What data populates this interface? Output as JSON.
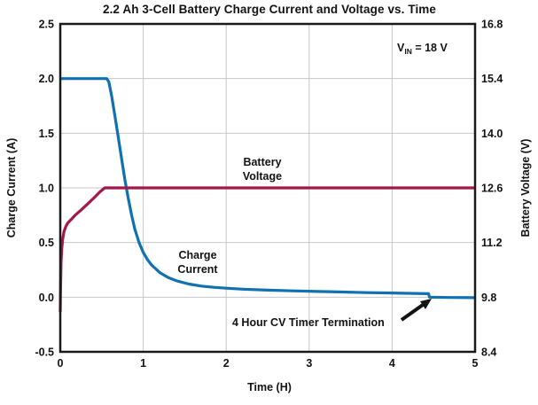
{
  "chart_data": {
    "type": "line",
    "title": "2.2 Ah 3-Cell Battery Charge Current and Voltage vs. Time",
    "xlabel": "Time (H)",
    "ylabel_left": "Charge Current (A)",
    "ylabel_right": "Battery Voltage (V)",
    "xlim": [
      0,
      5
    ],
    "ylim_left": [
      -0.5,
      2.5
    ],
    "ylim_right": [
      8.4,
      16.8
    ],
    "grid": "on",
    "x_ticks": [
      "0",
      "1",
      "2",
      "3",
      "4",
      "5"
    ],
    "y_left_ticks": [
      "2.5",
      "2.0",
      "1.5",
      "1.0",
      "0.5",
      "0.0",
      "-0.5"
    ],
    "y_right_ticks": [
      "16.8",
      "15.4",
      "14.0",
      "12.6",
      "11.2",
      "9.8",
      "8.4"
    ],
    "annotations": {
      "vin": {
        "pre": "V",
        "sub": "IN",
        "post": " = 18 V"
      },
      "battery_voltage_label": {
        "line1": "Battery",
        "line2": "Voltage"
      },
      "charge_current_label": {
        "line1": "Charge",
        "line2": "Current"
      },
      "cv_timer": "4 Hour CV Timer Termination"
    },
    "series": [
      {
        "name": "Charge Current",
        "axis": "left",
        "unit": "A",
        "color": "#0f70b2",
        "points": [
          [
            0,
            2.0
          ],
          [
            0.56,
            2.0
          ],
          [
            0.585,
            1.97
          ],
          [
            0.62,
            1.84
          ],
          [
            0.66,
            1.65
          ],
          [
            0.7,
            1.46
          ],
          [
            0.74,
            1.26
          ],
          [
            0.78,
            1.07
          ],
          [
            0.82,
            0.9
          ],
          [
            0.86,
            0.75
          ],
          [
            0.9,
            0.62
          ],
          [
            0.95,
            0.5
          ],
          [
            1.0,
            0.41
          ],
          [
            1.05,
            0.345
          ],
          [
            1.1,
            0.295
          ],
          [
            1.2,
            0.225
          ],
          [
            1.3,
            0.18
          ],
          [
            1.4,
            0.15
          ],
          [
            1.55,
            0.12
          ],
          [
            1.7,
            0.102
          ],
          [
            1.85,
            0.09
          ],
          [
            2.0,
            0.082
          ],
          [
            2.2,
            0.073
          ],
          [
            2.5,
            0.064
          ],
          [
            2.8,
            0.058
          ],
          [
            3.1,
            0.052
          ],
          [
            3.4,
            0.047
          ],
          [
            3.7,
            0.042
          ],
          [
            4.0,
            0.038
          ],
          [
            4.2,
            0.035
          ],
          [
            4.44,
            0.032
          ],
          [
            4.45,
            0.0
          ],
          [
            4.7,
            -0.003
          ],
          [
            5.0,
            -0.005
          ]
        ]
      },
      {
        "name": "Battery Voltage",
        "axis": "right",
        "unit": "V",
        "color": "#a21848",
        "points": [
          [
            0,
            9.42
          ],
          [
            0.004,
            10.1
          ],
          [
            0.01,
            10.7
          ],
          [
            0.018,
            11.05
          ],
          [
            0.03,
            11.3
          ],
          [
            0.045,
            11.48
          ],
          [
            0.065,
            11.6
          ],
          [
            0.09,
            11.7
          ],
          [
            0.13,
            11.79
          ],
          [
            0.18,
            11.9
          ],
          [
            0.25,
            12.03
          ],
          [
            0.32,
            12.17
          ],
          [
            0.4,
            12.33
          ],
          [
            0.48,
            12.5
          ],
          [
            0.535,
            12.6
          ],
          [
            5.0,
            12.6
          ]
        ]
      }
    ]
  }
}
